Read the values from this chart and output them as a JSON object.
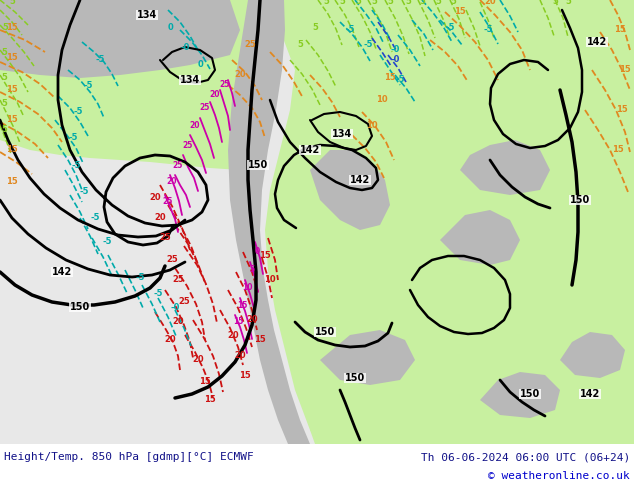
{
  "title_left": "Height/Temp. 850 hPa [gdmp][°C] ECMWF",
  "title_right": "Th 06-06-2024 06:00 UTC (06+24)",
  "copyright": "© weatheronline.co.uk",
  "bg_color": "#ffffff",
  "land_light": "#e8e8e8",
  "land_green": "#c8f0a0",
  "land_grey": "#b0b0b0",
  "figsize": [
    6.34,
    4.9
  ],
  "dpi": 100
}
